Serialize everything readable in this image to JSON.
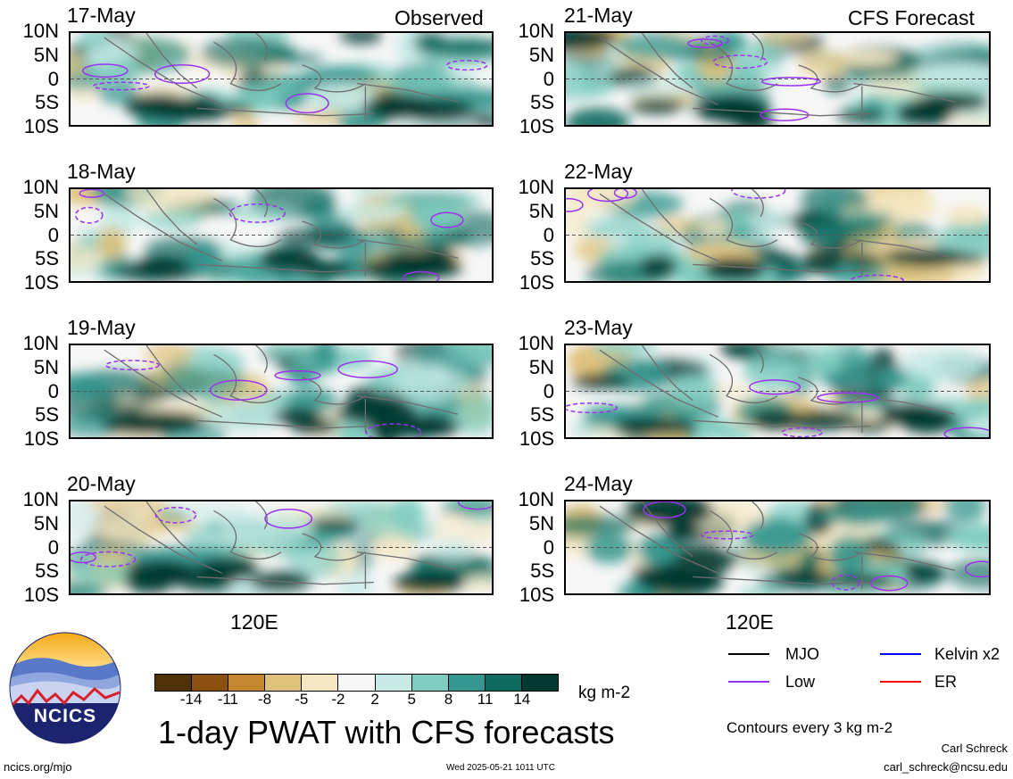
{
  "columns": {
    "observed": "Observed",
    "forecast": "CFS Forecast"
  },
  "panels": [
    {
      "date": "17-May",
      "variant": 0
    },
    {
      "date": "18-May",
      "variant": 1
    },
    {
      "date": "19-May",
      "variant": 2
    },
    {
      "date": "20-May",
      "variant": 3
    },
    {
      "date": "21-May",
      "variant": 4
    },
    {
      "date": "22-May",
      "variant": 5
    },
    {
      "date": "23-May",
      "variant": 6
    },
    {
      "date": "24-May",
      "variant": 7
    }
  ],
  "lat_labels": [
    "10N",
    "5N",
    "0",
    "5S",
    "10S"
  ],
  "lon_label": "120E",
  "colorbar": {
    "ticks": [
      "-14",
      "-11",
      "-8",
      "-5",
      "-2",
      "2",
      "5",
      "8",
      "11",
      "14"
    ],
    "colors": [
      "#4f3207",
      "#8c5111",
      "#c4872f",
      "#dfc17a",
      "#f5e7c2",
      "#f7f7f7",
      "#c7eae5",
      "#7fcdc0",
      "#35978f",
      "#0f6b60",
      "#01382f"
    ],
    "unit": "kg m-2"
  },
  "title": "1-day PWAT with CFS forecasts",
  "legend": {
    "items": [
      {
        "label": "MJO",
        "color": "#000000"
      },
      {
        "label": "Kelvin x2",
        "color": "#0000ff"
      },
      {
        "label": "Low",
        "color": "#9a32f0"
      },
      {
        "label": "ER",
        "color": "#ff0000"
      }
    ],
    "contours_note": "Contours every 3 kg m-2"
  },
  "logo_text": "NCICS",
  "footer": {
    "url": "ncics.org/mjo",
    "timestamp": "Wed 2025-05-21 1011 UTC",
    "author": "Carl Schreck",
    "email": "carl_schreck@ncsu.edu"
  }
}
